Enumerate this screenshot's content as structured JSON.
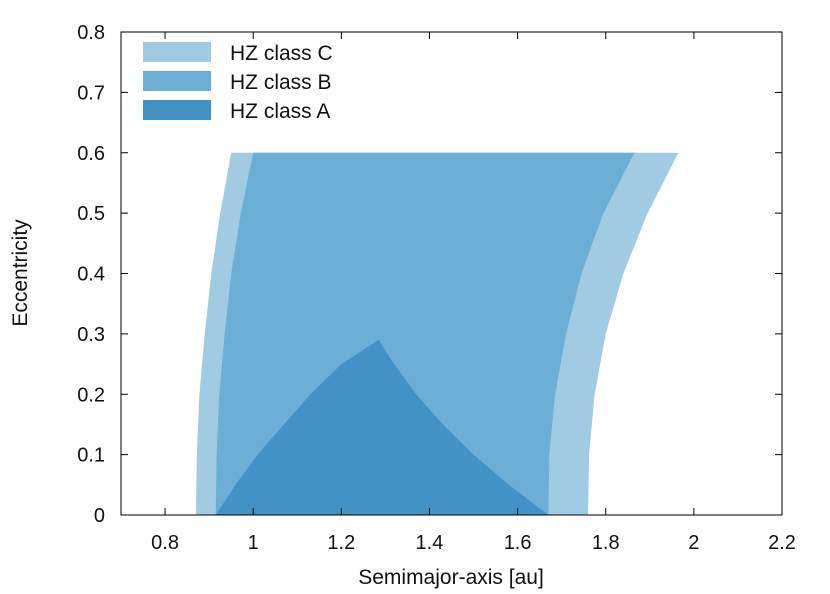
{
  "chart_data": {
    "type": "area",
    "title": "",
    "xlabel": "Semimajor-axis [au]",
    "ylabel": "Eccentricity",
    "xlim": [
      0.7,
      2.2
    ],
    "ylim": [
      0,
      0.8
    ],
    "x_ticks": [
      "0.8",
      "1",
      "1.2",
      "1.4",
      "1.6",
      "1.8",
      "2",
      "2.2"
    ],
    "y_ticks": [
      "0",
      "0.1",
      "0.2",
      "0.3",
      "0.4",
      "0.5",
      "0.6",
      "0.7",
      "0.8"
    ],
    "grid": false,
    "legend_position": "top-left",
    "series": [
      {
        "name": "HZ class C",
        "color": "#a1cbe2",
        "inner_edge": [
          [
            0.87,
            0.0
          ],
          [
            0.872,
            0.1
          ],
          [
            0.878,
            0.2
          ],
          [
            0.89,
            0.3
          ],
          [
            0.905,
            0.4
          ],
          [
            0.925,
            0.5
          ],
          [
            0.95,
            0.6
          ]
        ],
        "outer_edge": [
          [
            1.76,
            0.0
          ],
          [
            1.762,
            0.1
          ],
          [
            1.775,
            0.2
          ],
          [
            1.8,
            0.3
          ],
          [
            1.84,
            0.4
          ],
          [
            1.895,
            0.5
          ],
          [
            1.965,
            0.6
          ]
        ]
      },
      {
        "name": "HZ class B",
        "color": "#6baed6",
        "inner_edge": [
          [
            0.915,
            0.0
          ],
          [
            0.917,
            0.1
          ],
          [
            0.923,
            0.2
          ],
          [
            0.935,
            0.3
          ],
          [
            0.95,
            0.4
          ],
          [
            0.972,
            0.5
          ],
          [
            1.0,
            0.6
          ]
        ],
        "outer_edge": [
          [
            1.67,
            0.0
          ],
          [
            1.672,
            0.1
          ],
          [
            1.685,
            0.2
          ],
          [
            1.71,
            0.3
          ],
          [
            1.745,
            0.4
          ],
          [
            1.795,
            0.5
          ],
          [
            1.865,
            0.6
          ]
        ]
      },
      {
        "name": "HZ class A",
        "color": "#4292c6",
        "points": [
          [
            0.915,
            0.0
          ],
          [
            0.96,
            0.05
          ],
          [
            1.01,
            0.1
          ],
          [
            1.07,
            0.15
          ],
          [
            1.13,
            0.2
          ],
          [
            1.2,
            0.25
          ],
          [
            1.285,
            0.29
          ],
          [
            1.31,
            0.26
          ],
          [
            1.37,
            0.2
          ],
          [
            1.43,
            0.15
          ],
          [
            1.5,
            0.1
          ],
          [
            1.58,
            0.05
          ],
          [
            1.67,
            0.0
          ]
        ]
      }
    ]
  }
}
